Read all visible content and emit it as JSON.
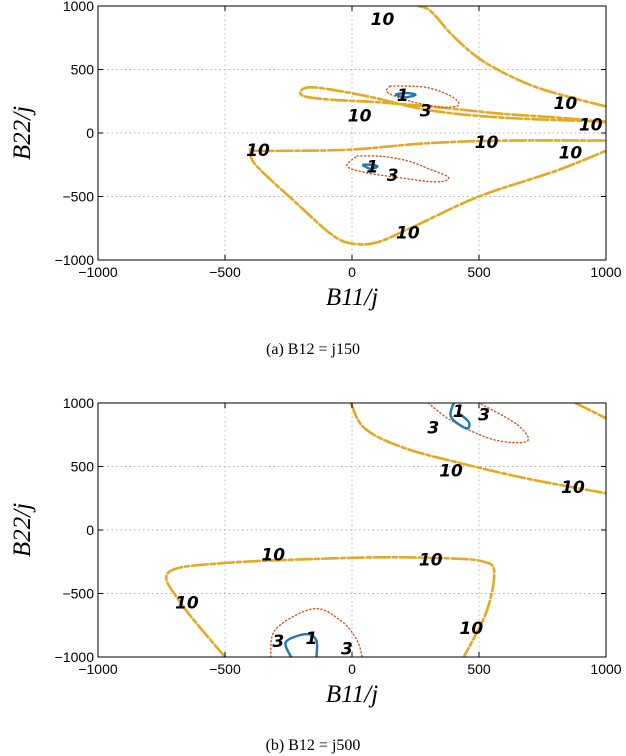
{
  "chart_data": [
    {
      "type": "contour",
      "xlabel": "B11/j",
      "ylabel": "B22/j",
      "xlim": [
        -1000,
        1000
      ],
      "ylim": [
        -1000,
        1000
      ],
      "xticks": [
        "−1000",
        "−500",
        "0",
        "500",
        "1000"
      ],
      "yticks": [
        "1000",
        "500",
        "0",
        "−500",
        "−1000"
      ],
      "grid": true,
      "caption": "(a)  B12 = j150",
      "contour_levels": [
        "1",
        "3",
        "10"
      ],
      "level_colors": {
        "1": "#1f77b4",
        "3": "#d9541a",
        "10": "#e6a820"
      },
      "contours": [
        {
          "level": "10",
          "points": [
            [
              1000,
              210
            ],
            [
              880,
              270
            ],
            [
              700,
              380
            ],
            [
              520,
              560
            ],
            [
              400,
              760
            ],
            [
              310,
              960
            ],
            [
              260,
              1000
            ]
          ]
        },
        {
          "level": "10",
          "points": [
            [
              1000,
              85
            ],
            [
              820,
              120
            ],
            [
              600,
              150
            ],
            [
              350,
              200
            ],
            [
              120,
              240
            ],
            [
              -100,
              265
            ],
            [
              -200,
              300
            ],
            [
              -160,
              360
            ],
            [
              60,
              290
            ],
            [
              300,
              180
            ],
            [
              600,
              120
            ],
            [
              1000,
              90
            ]
          ]
        },
        {
          "level": "10",
          "points": [
            [
              -400,
              -140
            ],
            [
              -250,
              -140
            ],
            [
              0,
              -130
            ],
            [
              300,
              -80
            ],
            [
              600,
              -60
            ],
            [
              1000,
              -60
            ]
          ]
        },
        {
          "level": "10",
          "points": [
            [
              -400,
              -130
            ],
            [
              -380,
              -250
            ],
            [
              -220,
              -550
            ],
            [
              -80,
              -800
            ],
            [
              0,
              -870
            ],
            [
              100,
              -860
            ],
            [
              250,
              -730
            ],
            [
              500,
              -500
            ],
            [
              800,
              -300
            ],
            [
              1000,
              -140
            ]
          ]
        },
        {
          "level": "3",
          "points": [
            [
              150,
              370
            ],
            [
              290,
              360
            ],
            [
              390,
              290
            ],
            [
              420,
              220
            ],
            [
              350,
              205
            ],
            [
              230,
              250
            ],
            [
              140,
              320
            ],
            [
              150,
              370
            ]
          ]
        },
        {
          "level": "3",
          "points": [
            [
              20,
              -180
            ],
            [
              120,
              -185
            ],
            [
              220,
              -220
            ],
            [
              300,
              -280
            ],
            [
              380,
              -350
            ],
            [
              330,
              -385
            ],
            [
              180,
              -350
            ],
            [
              50,
              -310
            ],
            [
              -20,
              -260
            ],
            [
              20,
              -180
            ]
          ]
        },
        {
          "level": "1",
          "points": [
            [
              170,
              305
            ],
            [
              215,
              315
            ],
            [
              250,
              300
            ],
            [
              205,
              280
            ],
            [
              170,
              305
            ]
          ]
        },
        {
          "level": "1",
          "points": [
            [
              40,
              -250
            ],
            [
              80,
              -250
            ],
            [
              100,
              -265
            ],
            [
              70,
              -280
            ],
            [
              40,
              -250
            ]
          ]
        }
      ],
      "contour_labels": [
        {
          "text": "10",
          "at": [
            120,
            890
          ]
        },
        {
          "text": "10",
          "at": [
            30,
            130
          ]
        },
        {
          "text": "10",
          "at": [
            840,
            230
          ]
        },
        {
          "text": "10",
          "at": [
            940,
            60
          ]
        },
        {
          "text": "10",
          "at": [
            530,
            -80
          ]
        },
        {
          "text": "10",
          "at": [
            -370,
            -140
          ]
        },
        {
          "text": "10",
          "at": [
            860,
            -160
          ]
        },
        {
          "text": "10",
          "at": [
            220,
            -790
          ]
        },
        {
          "text": "1",
          "at": [
            200,
            290
          ]
        },
        {
          "text": "3",
          "at": [
            290,
            170
          ]
        },
        {
          "text": "1",
          "at": [
            80,
            -270
          ]
        },
        {
          "text": "3",
          "at": [
            160,
            -340
          ]
        }
      ]
    },
    {
      "type": "contour",
      "xlabel": "B11/j",
      "ylabel": "B22/j",
      "xlim": [
        -1000,
        1000
      ],
      "ylim": [
        -1000,
        1000
      ],
      "xticks": [
        "−1000",
        "−500",
        "0",
        "500",
        "1000"
      ],
      "yticks": [
        "1000",
        "500",
        "0",
        "−500",
        "−1000"
      ],
      "grid": true,
      "caption": "(b)  B12 = j500",
      "contour_levels": [
        "1",
        "3",
        "10"
      ],
      "level_colors": {
        "1": "#1f77b4",
        "3": "#d9541a",
        "10": "#e6a820"
      },
      "contours": [
        {
          "level": "10",
          "points": [
            [
              -5,
              1000
            ],
            [
              50,
              800
            ],
            [
              200,
              650
            ],
            [
              420,
              530
            ],
            [
              700,
              400
            ],
            [
              1000,
              290
            ]
          ]
        },
        {
          "level": "10",
          "points": [
            [
              880,
              1000
            ],
            [
              950,
              930
            ],
            [
              1000,
              880
            ]
          ]
        },
        {
          "level": "10",
          "points": [
            [
              -500,
              -1000
            ],
            [
              -680,
              -560
            ],
            [
              -720,
              -330
            ],
            [
              -500,
              -260
            ],
            [
              -100,
              -225
            ],
            [
              150,
              -215
            ],
            [
              400,
              -225
            ],
            [
              520,
              -250
            ],
            [
              560,
              -330
            ],
            [
              530,
              -640
            ],
            [
              440,
              -1000
            ]
          ]
        },
        {
          "level": "3",
          "points": [
            [
              300,
              1000
            ],
            [
              400,
              850
            ],
            [
              560,
              710
            ],
            [
              690,
              700
            ],
            [
              650,
              830
            ],
            [
              510,
              990
            ]
          ]
        },
        {
          "level": "3",
          "points": [
            [
              -320,
              -1000
            ],
            [
              -300,
              -780
            ],
            [
              -150,
              -620
            ],
            [
              -40,
              -720
            ],
            [
              20,
              -870
            ],
            [
              40,
              -1000
            ]
          ]
        },
        {
          "level": "1",
          "points": [
            [
              400,
              1000
            ],
            [
              390,
              890
            ],
            [
              450,
              800
            ],
            [
              460,
              850
            ],
            [
              420,
              920
            ]
          ]
        },
        {
          "level": "1",
          "points": [
            [
              -240,
              -1000
            ],
            [
              -260,
              -880
            ],
            [
              -180,
              -820
            ],
            [
              -140,
              -870
            ],
            [
              -140,
              -1000
            ]
          ]
        }
      ],
      "contour_labels": [
        {
          "text": "10",
          "at": [
            -310,
            -200
          ]
        },
        {
          "text": "10",
          "at": [
            310,
            -240
          ]
        },
        {
          "text": "10",
          "at": [
            390,
            460
          ]
        },
        {
          "text": "10",
          "at": [
            870,
            330
          ]
        },
        {
          "text": "10",
          "at": [
            -650,
            -580
          ]
        },
        {
          "text": "10",
          "at": [
            470,
            -780
          ]
        },
        {
          "text": "1",
          "at": [
            420,
            930
          ]
        },
        {
          "text": "3",
          "at": [
            520,
            900
          ]
        },
        {
          "text": "3",
          "at": [
            320,
            800
          ]
        },
        {
          "text": "1",
          "at": [
            -160,
            -860
          ]
        },
        {
          "text": "3",
          "at": [
            -290,
            -880
          ]
        },
        {
          "text": "3",
          "at": [
            -20,
            -940
          ]
        }
      ]
    }
  ]
}
